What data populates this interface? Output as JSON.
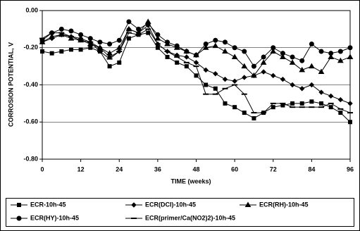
{
  "chart_data": {
    "type": "line",
    "x_label": "TIME (weeks)",
    "y_label": "CORROSION POTENTIAL, V",
    "x": [
      0,
      3,
      6,
      9,
      12,
      15,
      18,
      21,
      24,
      27,
      30,
      33,
      36,
      39,
      42,
      45,
      48,
      51,
      54,
      57,
      60,
      63,
      66,
      69,
      72,
      75,
      78,
      81,
      84,
      87,
      90,
      93,
      96
    ],
    "series": [
      {
        "name": "ECR-10h-45",
        "color": "#000000",
        "marker": "square",
        "values": [
          -0.22,
          -0.23,
          -0.22,
          -0.21,
          -0.21,
          -0.2,
          -0.22,
          -0.3,
          -0.28,
          -0.15,
          -0.13,
          -0.12,
          -0.2,
          -0.25,
          -0.28,
          -0.3,
          -0.35,
          -0.4,
          -0.42,
          -0.5,
          -0.52,
          -0.55,
          -0.58,
          -0.55,
          -0.52,
          -0.51,
          -0.5,
          -0.5,
          -0.49,
          -0.5,
          -0.52,
          -0.55,
          -0.6
        ]
      },
      {
        "name": "ECR(DCI)-10h-45",
        "color": "#000000",
        "marker": "diamond",
        "values": [
          -0.17,
          -0.15,
          -0.13,
          -0.14,
          -0.15,
          -0.17,
          -0.2,
          -0.25,
          -0.22,
          -0.1,
          -0.12,
          -0.08,
          -0.18,
          -0.22,
          -0.24,
          -0.25,
          -0.28,
          -0.32,
          -0.34,
          -0.37,
          -0.38,
          -0.36,
          -0.35,
          -0.33,
          -0.35,
          -0.37,
          -0.4,
          -0.42,
          -0.4,
          -0.44,
          -0.46,
          -0.48,
          -0.5
        ]
      },
      {
        "name": "ECR(RH)-10h-45",
        "color": "#000000",
        "marker": "triangle",
        "values": [
          -0.17,
          -0.14,
          -0.13,
          -0.15,
          -0.16,
          -0.18,
          -0.2,
          -0.23,
          -0.2,
          -0.1,
          -0.12,
          -0.06,
          -0.15,
          -0.18,
          -0.2,
          -0.22,
          -0.24,
          -0.2,
          -0.19,
          -0.22,
          -0.25,
          -0.3,
          -0.35,
          -0.28,
          -0.22,
          -0.25,
          -0.28,
          -0.32,
          -0.3,
          -0.33,
          -0.25,
          -0.27,
          -0.25
        ]
      },
      {
        "name": "ECR(HY)-10h-45",
        "color": "#000000",
        "marker": "circle",
        "values": [
          -0.16,
          -0.12,
          -0.1,
          -0.11,
          -0.13,
          -0.15,
          -0.17,
          -0.18,
          -0.16,
          -0.06,
          -0.1,
          -0.07,
          -0.13,
          -0.17,
          -0.19,
          -0.22,
          -0.24,
          -0.18,
          -0.16,
          -0.17,
          -0.2,
          -0.22,
          -0.3,
          -0.25,
          -0.2,
          -0.23,
          -0.25,
          -0.27,
          -0.18,
          -0.22,
          -0.23,
          -0.22,
          -0.2
        ]
      },
      {
        "name": "ECR(primer/Ca(NO2)2)-10h-45",
        "color": "#000000",
        "marker": "dash",
        "values": [
          -0.15,
          -0.12,
          -0.12,
          -0.14,
          -0.16,
          -0.17,
          -0.22,
          -0.26,
          -0.22,
          -0.12,
          -0.13,
          -0.1,
          -0.18,
          -0.22,
          -0.25,
          -0.28,
          -0.3,
          -0.45,
          -0.45,
          -0.42,
          -0.4,
          -0.45,
          -0.55,
          -0.55,
          -0.5,
          -0.5,
          -0.52,
          -0.52,
          -0.52,
          -0.52,
          -0.5,
          -0.53,
          -0.55
        ]
      }
    ],
    "xlim": [
      0,
      96
    ],
    "xticks": [
      0,
      12,
      24,
      36,
      48,
      60,
      72,
      84,
      96
    ],
    "ylim": [
      -0.8,
      0
    ],
    "yticks": [
      {
        "value": -0.8,
        "label": "-0.80"
      },
      {
        "value": -0.6,
        "label": "-0.60"
      },
      {
        "value": -0.4,
        "label": "-0.40"
      },
      {
        "value": -0.2,
        "label": "-0.20"
      },
      {
        "value": 0,
        "label": "0.00"
      }
    ],
    "grid": true
  }
}
